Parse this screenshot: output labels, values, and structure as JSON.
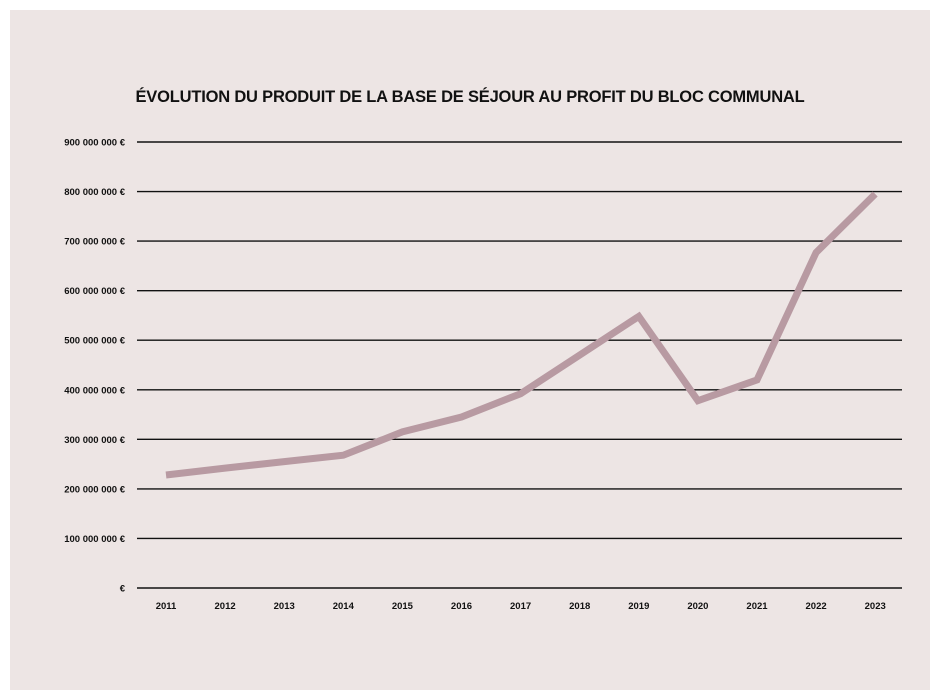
{
  "chart_data": {
    "type": "line",
    "title": "ÉVOLUTION DU PRODUIT DE LA BASE DE SÉJOUR AU PROFIT DU BLOC COMMUNAL",
    "xlabel": "",
    "ylabel": "",
    "x": [
      "2011",
      "2012",
      "2013",
      "2014",
      "2015",
      "2016",
      "2017",
      "2018",
      "2019",
      "2020",
      "2021",
      "2022",
      "2023"
    ],
    "series": [
      {
        "values": [
          228000000,
          242000000,
          255000000,
          268000000,
          315000000,
          345000000,
          392000000,
          470000000,
          548000000,
          378000000,
          420000000,
          677000000,
          795000000
        ]
      }
    ],
    "ylim": [
      0,
      900000000
    ],
    "yticks": [
      0,
      100000000,
      200000000,
      300000000,
      400000000,
      500000000,
      600000000,
      700000000,
      800000000,
      900000000
    ],
    "ytick_labels": [
      "€",
      "100 000 000 €",
      "200 000 000 €",
      "300 000 000 €",
      "400 000 000 €",
      "500 000 000 €",
      "600 000 000 €",
      "700 000 000 €",
      "800 000 000 €",
      "900 000 000 €"
    ],
    "grid": true,
    "colors": {
      "line": "#b89aa2",
      "grid": "#111111",
      "background": "#ede5e4"
    }
  }
}
